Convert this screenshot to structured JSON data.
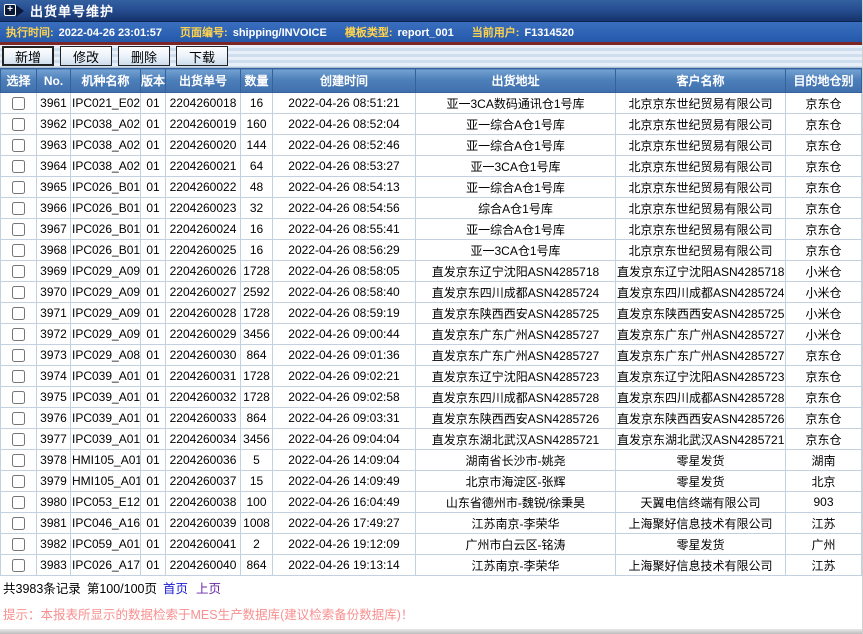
{
  "window": {
    "title": "出货单号维护"
  },
  "info_bar": {
    "items": [
      {
        "label": "执行时间:",
        "value": "2022-04-26 23:01:57"
      },
      {
        "label": "页面编号:",
        "value": "shipping/INVOICE"
      },
      {
        "label": "模板类型:",
        "value": "report_001"
      },
      {
        "label": "当前用户:",
        "value": "F1314520"
      }
    ]
  },
  "toolbar": {
    "buttons": [
      "新增",
      "修改",
      "删除",
      "下载"
    ]
  },
  "table": {
    "columns": [
      "选择",
      "No.",
      "机种名称",
      "版本",
      "出货单号",
      "数量",
      "创建时间",
      "出货地址",
      "客户名称",
      "目的地仓别"
    ],
    "rows": [
      [
        "3961",
        "IPC021_E02",
        "01",
        "2204260018",
        "16",
        "2022-04-26 08:51:21",
        "亚一3CA数码通讯仓1号库",
        "北京京东世纪贸易有限公司",
        "京东仓"
      ],
      [
        "3962",
        "IPC038_A02",
        "01",
        "2204260019",
        "160",
        "2022-04-26 08:52:04",
        "亚一综合A仓1号库",
        "北京京东世纪贸易有限公司",
        "京东仓"
      ],
      [
        "3963",
        "IPC038_A02",
        "01",
        "2204260020",
        "144",
        "2022-04-26 08:52:46",
        "亚一综合A仓1号库",
        "北京京东世纪贸易有限公司",
        "京东仓"
      ],
      [
        "3964",
        "IPC038_A02",
        "01",
        "2204260021",
        "64",
        "2022-04-26 08:53:27",
        "亚一3CA仓1号库",
        "北京京东世纪贸易有限公司",
        "京东仓"
      ],
      [
        "3965",
        "IPC026_B01",
        "01",
        "2204260022",
        "48",
        "2022-04-26 08:54:13",
        "亚一综合A仓1号库",
        "北京京东世纪贸易有限公司",
        "京东仓"
      ],
      [
        "3966",
        "IPC026_B01",
        "01",
        "2204260023",
        "32",
        "2022-04-26 08:54:56",
        "综合A仓1号库",
        "北京京东世纪贸易有限公司",
        "京东仓"
      ],
      [
        "3967",
        "IPC026_B01",
        "01",
        "2204260024",
        "16",
        "2022-04-26 08:55:41",
        "亚一综合A仓1号库",
        "北京京东世纪贸易有限公司",
        "京东仓"
      ],
      [
        "3968",
        "IPC026_B01",
        "01",
        "2204260025",
        "16",
        "2022-04-26 08:56:29",
        "亚一3CA仓1号库",
        "北京京东世纪贸易有限公司",
        "京东仓"
      ],
      [
        "3969",
        "IPC029_A09",
        "01",
        "2204260026",
        "1728",
        "2022-04-26 08:58:05",
        "直发京东辽宁沈阳ASN4285718",
        "直发京东辽宁沈阳ASN4285718",
        "小米仓"
      ],
      [
        "3970",
        "IPC029_A09",
        "01",
        "2204260027",
        "2592",
        "2022-04-26 08:58:40",
        "直发京东四川成都ASN4285724",
        "直发京东四川成都ASN4285724",
        "小米仓"
      ],
      [
        "3971",
        "IPC029_A09",
        "01",
        "2204260028",
        "1728",
        "2022-04-26 08:59:19",
        "直发京东陕西西安ASN4285725",
        "直发京东陕西西安ASN4285725",
        "小米仓"
      ],
      [
        "3972",
        "IPC029_A09",
        "01",
        "2204260029",
        "3456",
        "2022-04-26 09:00:44",
        "直发京东广东广州ASN4285727",
        "直发京东广东广州ASN4285727",
        "小米仓"
      ],
      [
        "3973",
        "IPC029_A08",
        "01",
        "2204260030",
        "864",
        "2022-04-26 09:01:36",
        "直发京东广东广州ASN4285727",
        "直发京东广东广州ASN4285727",
        "京东仓"
      ],
      [
        "3974",
        "IPC039_A01",
        "01",
        "2204260031",
        "1728",
        "2022-04-26 09:02:21",
        "直发京东辽宁沈阳ASN4285723",
        "直发京东辽宁沈阳ASN4285723",
        "京东仓"
      ],
      [
        "3975",
        "IPC039_A01",
        "01",
        "2204260032",
        "1728",
        "2022-04-26 09:02:58",
        "直发京东四川成都ASN4285728",
        "直发京东四川成都ASN4285728",
        "京东仓"
      ],
      [
        "3976",
        "IPC039_A01",
        "01",
        "2204260033",
        "864",
        "2022-04-26 09:03:31",
        "直发京东陕西西安ASN4285726",
        "直发京东陕西西安ASN4285726",
        "京东仓"
      ],
      [
        "3977",
        "IPC039_A01",
        "01",
        "2204260034",
        "3456",
        "2022-04-26 09:04:04",
        "直发京东湖北武汉ASN4285721",
        "直发京东湖北武汉ASN4285721",
        "京东仓"
      ],
      [
        "3978",
        "HMI105_A01",
        "01",
        "2204260036",
        "5",
        "2022-04-26 14:09:04",
        "湖南省长沙市-姚尧",
        "零星发货",
        "湖南"
      ],
      [
        "3979",
        "HMI105_A01",
        "01",
        "2204260037",
        "15",
        "2022-04-26 14:09:49",
        "北京市海淀区-张辉",
        "零星发货",
        "北京"
      ],
      [
        "3980",
        "IPC053_E12",
        "01",
        "2204260038",
        "100",
        "2022-04-26 16:04:49",
        "山东省德州市-魏锐/徐秉昊",
        "天翼电信终端有限公司",
        "903"
      ],
      [
        "3981",
        "IPC046_A16",
        "01",
        "2204260039",
        "1008",
        "2022-04-26 17:49:27",
        "江苏南京-李荣华",
        "上海聚好信息技术有限公司",
        "江苏"
      ],
      [
        "3982",
        "IPC059_A01",
        "01",
        "2204260041",
        "2",
        "2022-04-26 19:12:09",
        "广州市白云区-铭涛",
        "零星发货",
        "广州"
      ],
      [
        "3983",
        "IPC026_A17",
        "01",
        "2204260040",
        "864",
        "2022-04-26 19:13:14",
        "江苏南京-李荣华",
        "上海聚好信息技术有限公司",
        "江苏"
      ]
    ]
  },
  "pagination": {
    "record_count": "共3983条记录",
    "page_info": "第100/100页",
    "links": [
      "首页",
      "上页"
    ]
  },
  "hint": "提示：本报表所显示的数据检索于MES生产数据库(建议检索备份数据库)！",
  "colors": {
    "title_bar": "#274e92",
    "info_bar": "#2d62b4",
    "info_label": "#ffd34d",
    "accent_strip": "#7d2626",
    "table_header": "#4d7fb9",
    "hint_text": "#f98f8f",
    "link_first": "#1b1bd1",
    "link_prev": "#6a27a8"
  }
}
